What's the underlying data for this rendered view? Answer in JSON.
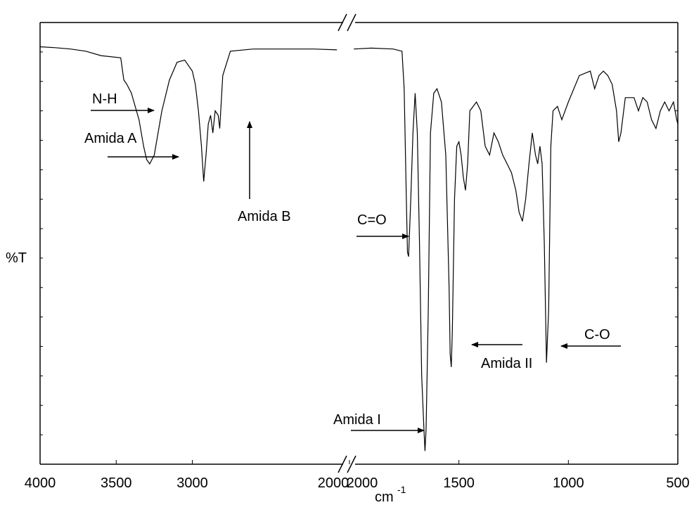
{
  "chart_data": {
    "type": "line",
    "title": "",
    "xlabel": "cm",
    "xlabel_superscript": "-1",
    "ylabel": "%T",
    "x_reversed": true,
    "x_axis_break": true,
    "x_segments": [
      {
        "range": [
          4000,
          2000
        ],
        "ticks": [
          "4000",
          "3500",
          "3000",
          "2000"
        ]
      },
      {
        "range": [
          2000,
          500
        ],
        "ticks": [
          "2000",
          "1500",
          "1000",
          "500"
        ]
      }
    ],
    "ylim": [
      0,
      100
    ],
    "y_tick_labels": "none",
    "grid": false,
    "legend": "none",
    "series": [
      {
        "points_left": [
          [
            4000,
            94.5
          ],
          [
            3900,
            94.3
          ],
          [
            3800,
            94
          ],
          [
            3700,
            93.5
          ],
          [
            3600,
            92.5
          ],
          [
            3470,
            92
          ],
          [
            3450,
            87
          ],
          [
            3430,
            86
          ],
          [
            3400,
            84
          ],
          [
            3350,
            78
          ],
          [
            3320,
            72
          ],
          [
            3300,
            69
          ],
          [
            3280,
            68
          ],
          [
            3250,
            70
          ],
          [
            3200,
            80
          ],
          [
            3150,
            87
          ],
          [
            3100,
            91
          ],
          [
            3050,
            91.5
          ],
          [
            3000,
            89
          ],
          [
            2980,
            86
          ],
          [
            2960,
            80
          ],
          [
            2940,
            72
          ],
          [
            2925,
            64
          ],
          [
            2910,
            70
          ],
          [
            2895,
            77
          ],
          [
            2880,
            79
          ],
          [
            2865,
            75
          ],
          [
            2850,
            80
          ],
          [
            2830,
            79
          ],
          [
            2820,
            76
          ],
          [
            2800,
            88
          ],
          [
            2750,
            93.5
          ],
          [
            2600,
            94
          ],
          [
            2400,
            94
          ],
          [
            2200,
            94
          ],
          [
            2050,
            93.8
          ]
        ],
        "points_right": [
          [
            1980,
            94
          ],
          [
            1900,
            94.2
          ],
          [
            1800,
            94
          ],
          [
            1760,
            93.5
          ],
          [
            1750,
            85
          ],
          [
            1740,
            60
          ],
          [
            1735,
            48
          ],
          [
            1730,
            47
          ],
          [
            1720,
            60
          ],
          [
            1710,
            75
          ],
          [
            1700,
            84
          ],
          [
            1690,
            75
          ],
          [
            1680,
            50
          ],
          [
            1670,
            20
          ],
          [
            1660,
            8
          ],
          [
            1655,
            3
          ],
          [
            1650,
            8
          ],
          [
            1640,
            35
          ],
          [
            1630,
            75
          ],
          [
            1615,
            84
          ],
          [
            1600,
            85
          ],
          [
            1580,
            82
          ],
          [
            1560,
            70
          ],
          [
            1545,
            40
          ],
          [
            1540,
            25
          ],
          [
            1535,
            22
          ],
          [
            1530,
            30
          ],
          [
            1520,
            60
          ],
          [
            1510,
            72
          ],
          [
            1500,
            73
          ],
          [
            1490,
            70
          ],
          [
            1480,
            65
          ],
          [
            1470,
            62
          ],
          [
            1460,
            68
          ],
          [
            1450,
            80
          ],
          [
            1420,
            82
          ],
          [
            1400,
            80
          ],
          [
            1380,
            72
          ],
          [
            1360,
            70
          ],
          [
            1340,
            75
          ],
          [
            1320,
            73
          ],
          [
            1300,
            70
          ],
          [
            1280,
            68
          ],
          [
            1260,
            66
          ],
          [
            1240,
            62
          ],
          [
            1225,
            57
          ],
          [
            1210,
            55
          ],
          [
            1195,
            60
          ],
          [
            1180,
            68
          ],
          [
            1165,
            75
          ],
          [
            1150,
            70
          ],
          [
            1140,
            68
          ],
          [
            1130,
            72
          ],
          [
            1120,
            68
          ],
          [
            1110,
            50
          ],
          [
            1100,
            23
          ],
          [
            1090,
            35
          ],
          [
            1080,
            72
          ],
          [
            1070,
            80
          ],
          [
            1050,
            81
          ],
          [
            1030,
            78
          ],
          [
            1000,
            82
          ],
          [
            950,
            88
          ],
          [
            900,
            89
          ],
          [
            880,
            85
          ],
          [
            860,
            88
          ],
          [
            840,
            89
          ],
          [
            820,
            88
          ],
          [
            800,
            86
          ],
          [
            780,
            80
          ],
          [
            770,
            73
          ],
          [
            760,
            75
          ],
          [
            740,
            83
          ],
          [
            700,
            83
          ],
          [
            680,
            80
          ],
          [
            660,
            83
          ],
          [
            640,
            82
          ],
          [
            620,
            78
          ],
          [
            600,
            76
          ],
          [
            580,
            80
          ],
          [
            560,
            82
          ],
          [
            540,
            80
          ],
          [
            520,
            82
          ],
          [
            505,
            78
          ],
          [
            500,
            77
          ]
        ]
      }
    ],
    "annotations": [
      {
        "text": "N-H",
        "arrow": "right"
      },
      {
        "text": "Amida A",
        "arrow": "right"
      },
      {
        "text": "Amida B",
        "arrow": "up"
      },
      {
        "text": "C=O",
        "arrow": "right"
      },
      {
        "text": "Amida I",
        "arrow": "right"
      },
      {
        "text": "Amida II",
        "arrow": "left"
      },
      {
        "text": "C-O",
        "arrow": "left"
      }
    ]
  }
}
